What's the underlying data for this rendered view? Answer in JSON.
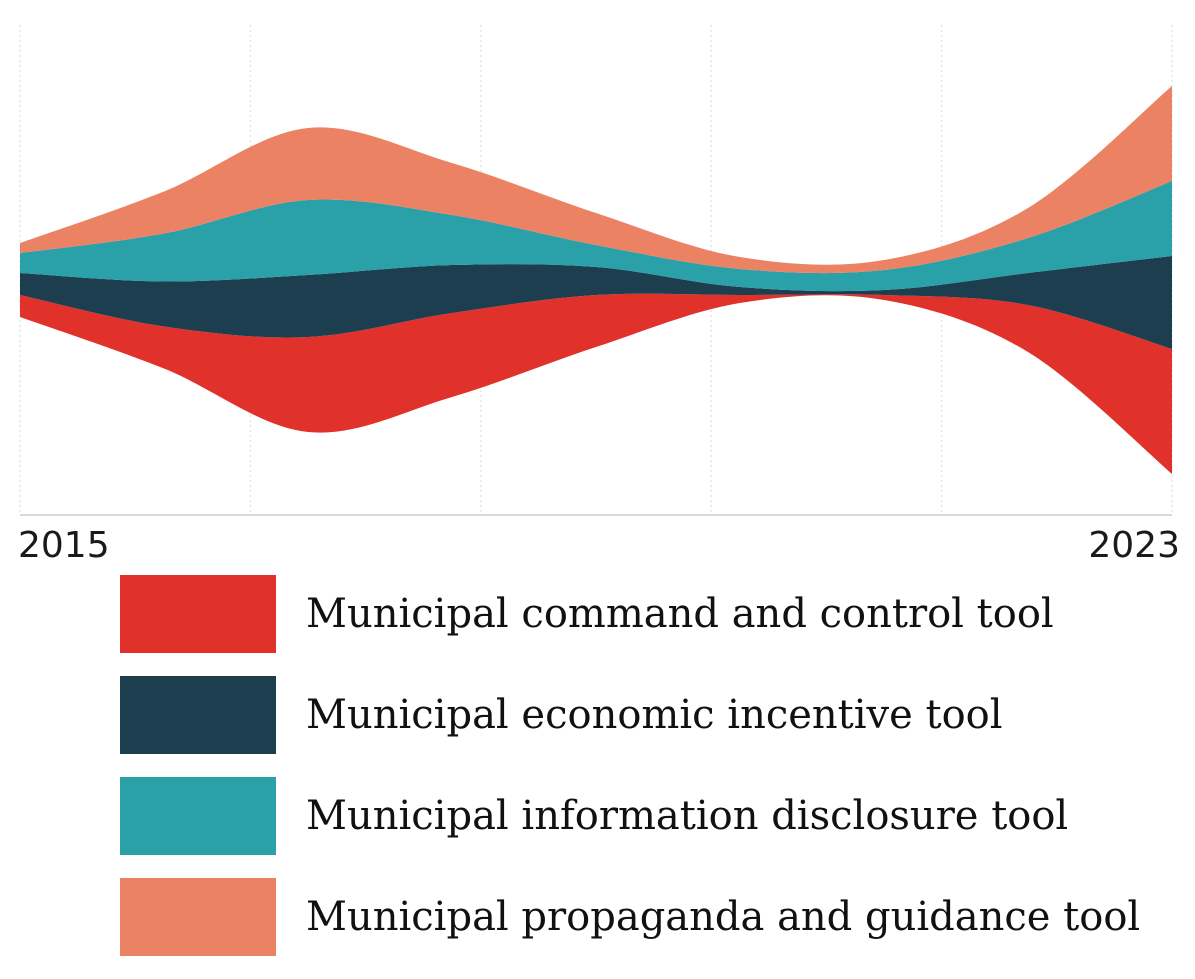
{
  "chart_data": {
    "type": "area",
    "subtype": "streamgraph",
    "title": "",
    "x_tick_labels": [
      "2015",
      "2023"
    ],
    "xlim": [
      2015,
      2023
    ],
    "grid": true,
    "x": [
      2015,
      2016,
      2017,
      2018,
      2019,
      2020,
      2021,
      2022,
      2023
    ],
    "series": [
      {
        "name": "Municipal command and control tool",
        "color": "#E0312B",
        "values": [
          0.22,
          0.42,
          0.95,
          0.84,
          0.52,
          0.08,
          0.05,
          0.47,
          1.25
        ]
      },
      {
        "name": "Municipal economic incentive tool",
        "color": "#1D3E4F",
        "values": [
          0.22,
          0.45,
          0.62,
          0.48,
          0.28,
          0.08,
          0.05,
          0.32,
          0.93
        ]
      },
      {
        "name": "Municipal information disclosure tool",
        "color": "#2AA0A8",
        "values": [
          0.2,
          0.48,
          0.75,
          0.5,
          0.22,
          0.18,
          0.2,
          0.35,
          0.75
        ]
      },
      {
        "name": "Municipal propaganda and guidance tool",
        "color": "#EC8264",
        "values": [
          0.1,
          0.42,
          0.72,
          0.52,
          0.32,
          0.12,
          0.1,
          0.3,
          0.95
        ]
      }
    ],
    "legend_position": "bottom"
  },
  "legend": {
    "items": [
      {
        "label": "Municipal command and control tool",
        "color": "#E0312B"
      },
      {
        "label": "Municipal economic incentive tool",
        "color": "#1D3E4F"
      },
      {
        "label": "Municipal information disclosure tool",
        "color": "#2AA0A8"
      },
      {
        "label": "Municipal propaganda and guidance tool",
        "color": "#EC8264"
      }
    ]
  }
}
